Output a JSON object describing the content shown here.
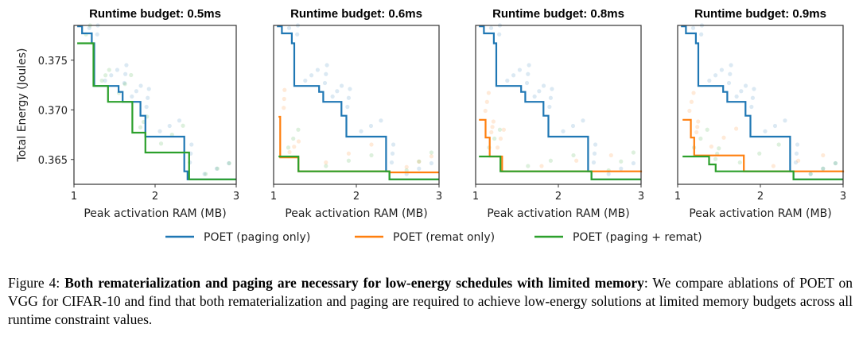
{
  "colors": {
    "paging_only": "#1f77b4",
    "remat_only": "#ff7f0e",
    "paging_remat": "#2ca02c",
    "frame": "#333333"
  },
  "legend": {
    "paging_only": "POET (paging only)",
    "remat_only": "POET (remat only)",
    "paging_remat": "POET (paging + remat)"
  },
  "caption": {
    "label": "Figure 4:",
    "bold": "Both rematerialization and paging are necessary for low-energy schedules with limited memory",
    "text": ":  We compare ablations of POET on VGG for CIFAR-10 and find that both rematerialization and paging are required to achieve low-energy solutions at limited memory budgets across all runtime constraint values."
  },
  "chart_data": [
    {
      "type": "line",
      "title": "Runtime budget: 0.5ms",
      "xlabel": "Peak activation RAM (MB)",
      "ylabel": "Total Energy (Joules)",
      "xlim": [
        1.0,
        3.0
      ],
      "ylim": [
        0.3625,
        0.3785
      ],
      "xticks": [
        "1",
        "2",
        "3"
      ],
      "yticks": [
        "0.365",
        "0.370",
        "0.375"
      ],
      "series": [
        {
          "name": "POET (paging only)",
          "key": "paging_only",
          "steps": [
            [
              1.04,
              0.3784
            ],
            [
              1.1,
              0.3777
            ],
            [
              1.22,
              0.3767
            ],
            [
              1.25,
              0.3724
            ],
            [
              1.55,
              0.3718
            ],
            [
              1.6,
              0.3708
            ],
            [
              1.82,
              0.3694
            ],
            [
              1.88,
              0.3673
            ],
            [
              2.36,
              0.3638
            ],
            [
              2.4,
              0.363
            ],
            [
              3.0,
              0.363
            ]
          ]
        },
        {
          "name": "POET (paging + remat)",
          "key": "paging_remat",
          "steps": [
            [
              1.04,
              0.3767
            ],
            [
              1.24,
              0.3724
            ],
            [
              1.42,
              0.3708
            ],
            [
              1.72,
              0.3677
            ],
            [
              1.88,
              0.3657
            ],
            [
              2.42,
              0.363
            ],
            [
              3.0,
              0.363
            ]
          ]
        }
      ]
    },
    {
      "type": "line",
      "title": "Runtime budget: 0.6ms",
      "xlabel": "Peak activation RAM (MB)",
      "ylabel": "",
      "xlim": [
        1.0,
        3.0
      ],
      "ylim": [
        0.3625,
        0.3785
      ],
      "xticks": [
        "1",
        "2",
        "3"
      ],
      "yticks": [],
      "series": [
        {
          "name": "POET (paging only)",
          "key": "paging_only",
          "steps": [
            [
              1.04,
              0.3784
            ],
            [
              1.1,
              0.3777
            ],
            [
              1.22,
              0.3767
            ],
            [
              1.25,
              0.3724
            ],
            [
              1.55,
              0.3718
            ],
            [
              1.6,
              0.3708
            ],
            [
              1.82,
              0.3694
            ],
            [
              1.88,
              0.3673
            ],
            [
              2.36,
              0.3638
            ],
            [
              2.4,
              0.363
            ],
            [
              3.0,
              0.363
            ]
          ]
        },
        {
          "name": "POET (remat only)",
          "key": "remat_only",
          "steps": [
            [
              1.06,
              0.3693
            ],
            [
              1.08,
              0.3652
            ],
            [
              1.3,
              0.3638
            ],
            [
              2.4,
              0.3637
            ],
            [
              3.0,
              0.3637
            ]
          ]
        },
        {
          "name": "POET (paging + remat)",
          "key": "paging_remat",
          "steps": [
            [
              1.06,
              0.3653
            ],
            [
              1.3,
              0.3638
            ],
            [
              2.4,
              0.363
            ],
            [
              3.0,
              0.363
            ]
          ]
        }
      ]
    },
    {
      "type": "line",
      "title": "Runtime budget: 0.8ms",
      "xlabel": "Peak activation RAM (MB)",
      "ylabel": "",
      "xlim": [
        1.0,
        3.0
      ],
      "ylim": [
        0.3625,
        0.3785
      ],
      "xticks": [
        "1",
        "2",
        "3"
      ],
      "yticks": [],
      "series": [
        {
          "name": "POET (paging only)",
          "key": "paging_only",
          "steps": [
            [
              1.04,
              0.3784
            ],
            [
              1.1,
              0.3777
            ],
            [
              1.22,
              0.3767
            ],
            [
              1.25,
              0.3724
            ],
            [
              1.55,
              0.3718
            ],
            [
              1.6,
              0.3708
            ],
            [
              1.82,
              0.3694
            ],
            [
              1.88,
              0.3673
            ],
            [
              2.36,
              0.3638
            ],
            [
              2.4,
              0.363
            ],
            [
              3.0,
              0.363
            ]
          ]
        },
        {
          "name": "POET (remat only)",
          "key": "remat_only",
          "steps": [
            [
              1.04,
              0.369
            ],
            [
              1.12,
              0.3672
            ],
            [
              1.17,
              0.3653
            ],
            [
              1.32,
              0.3638
            ],
            [
              3.0,
              0.3637
            ]
          ]
        },
        {
          "name": "POET (paging + remat)",
          "key": "paging_remat",
          "steps": [
            [
              1.04,
              0.3653
            ],
            [
              1.3,
              0.3638
            ],
            [
              2.4,
              0.363
            ],
            [
              3.0,
              0.363
            ]
          ]
        }
      ]
    },
    {
      "type": "line",
      "title": "Runtime budget: 0.9ms",
      "xlabel": "Peak activation RAM (MB)",
      "ylabel": "",
      "xlim": [
        1.0,
        3.0
      ],
      "ylim": [
        0.3625,
        0.3785
      ],
      "xticks": [
        "1",
        "2",
        "3"
      ],
      "yticks": [],
      "series": [
        {
          "name": "POET (paging only)",
          "key": "paging_only",
          "steps": [
            [
              1.04,
              0.3784
            ],
            [
              1.1,
              0.3777
            ],
            [
              1.22,
              0.3767
            ],
            [
              1.25,
              0.3724
            ],
            [
              1.55,
              0.3718
            ],
            [
              1.6,
              0.3708
            ],
            [
              1.82,
              0.3694
            ],
            [
              1.88,
              0.3673
            ],
            [
              2.36,
              0.3638
            ],
            [
              2.4,
              0.363
            ],
            [
              3.0,
              0.363
            ]
          ]
        },
        {
          "name": "POET (remat only)",
          "key": "remat_only",
          "steps": [
            [
              1.06,
              0.369
            ],
            [
              1.16,
              0.3672
            ],
            [
              1.2,
              0.3654
            ],
            [
              1.8,
              0.3638
            ],
            [
              3.0,
              0.3637
            ]
          ]
        },
        {
          "name": "POET (paging + remat)",
          "key": "paging_remat",
          "steps": [
            [
              1.06,
              0.3653
            ],
            [
              1.38,
              0.3645
            ],
            [
              1.46,
              0.3638
            ],
            [
              2.4,
              0.363
            ],
            [
              3.0,
              0.363
            ]
          ]
        }
      ]
    }
  ]
}
